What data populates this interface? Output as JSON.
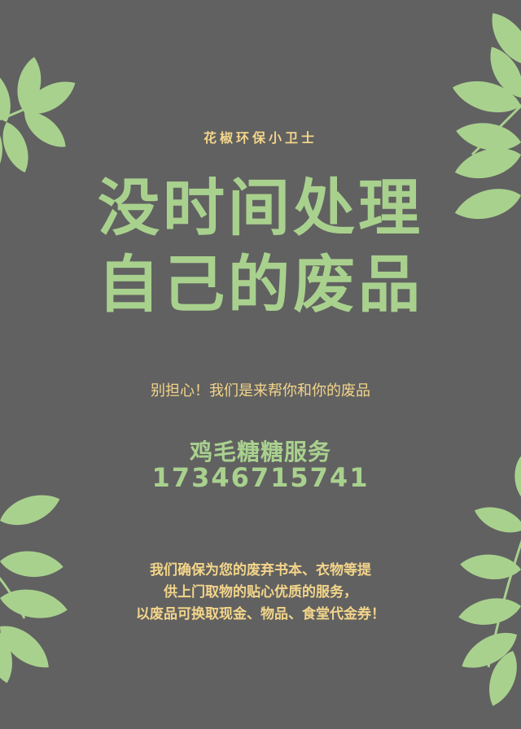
{
  "colors": {
    "background": "#616161",
    "headline": "#a9d18e",
    "accent_text": "#f3d58a",
    "leaf": "#a9d18e"
  },
  "icons": [
    "leaf-branch-icon"
  ],
  "brand": "花椒环保小卫士",
  "headline": {
    "line1": "没时间处理",
    "line2": "自己的废品"
  },
  "reassure": "别担心！我们是来帮你和你的废品",
  "service": {
    "name": "鸡毛糖糖服务",
    "phone": "17346715741"
  },
  "description": {
    "line1": "我们确保为您的废弃书本、衣物等提",
    "line2": "供上门取物的贴心优质的服务，",
    "line3": "以废品可换取现金、物品、食堂代金券！"
  }
}
